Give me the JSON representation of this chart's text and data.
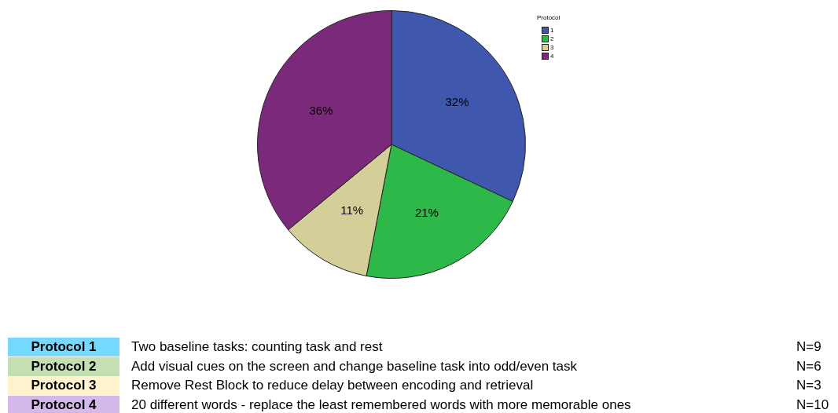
{
  "chart_data": {
    "type": "pie",
    "legend_title": "Protocol",
    "categories": [
      "1",
      "2",
      "3",
      "4"
    ],
    "values": [
      32,
      21,
      11,
      36
    ],
    "colors": [
      "#3f58ad",
      "#2eb84a",
      "#d4cf98",
      "#7b2a7b"
    ],
    "value_labels": [
      "32%",
      "21%",
      "11%",
      "36%"
    ],
    "legend": "top right",
    "annotations": [
      "Protocol 1",
      "Two baseline tasks: counting task and rest",
      "N=9",
      "Protocol 2",
      "Add visual cues on the screen and change baseline task into odd/even task",
      "N=6",
      "Protocol 3",
      "Remove Rest Block to reduce delay between encoding and retrieval",
      "N=3",
      "Protocol 4",
      "20 different words - replace the least remembered words with more memorable ones",
      "N=10"
    ]
  }
}
